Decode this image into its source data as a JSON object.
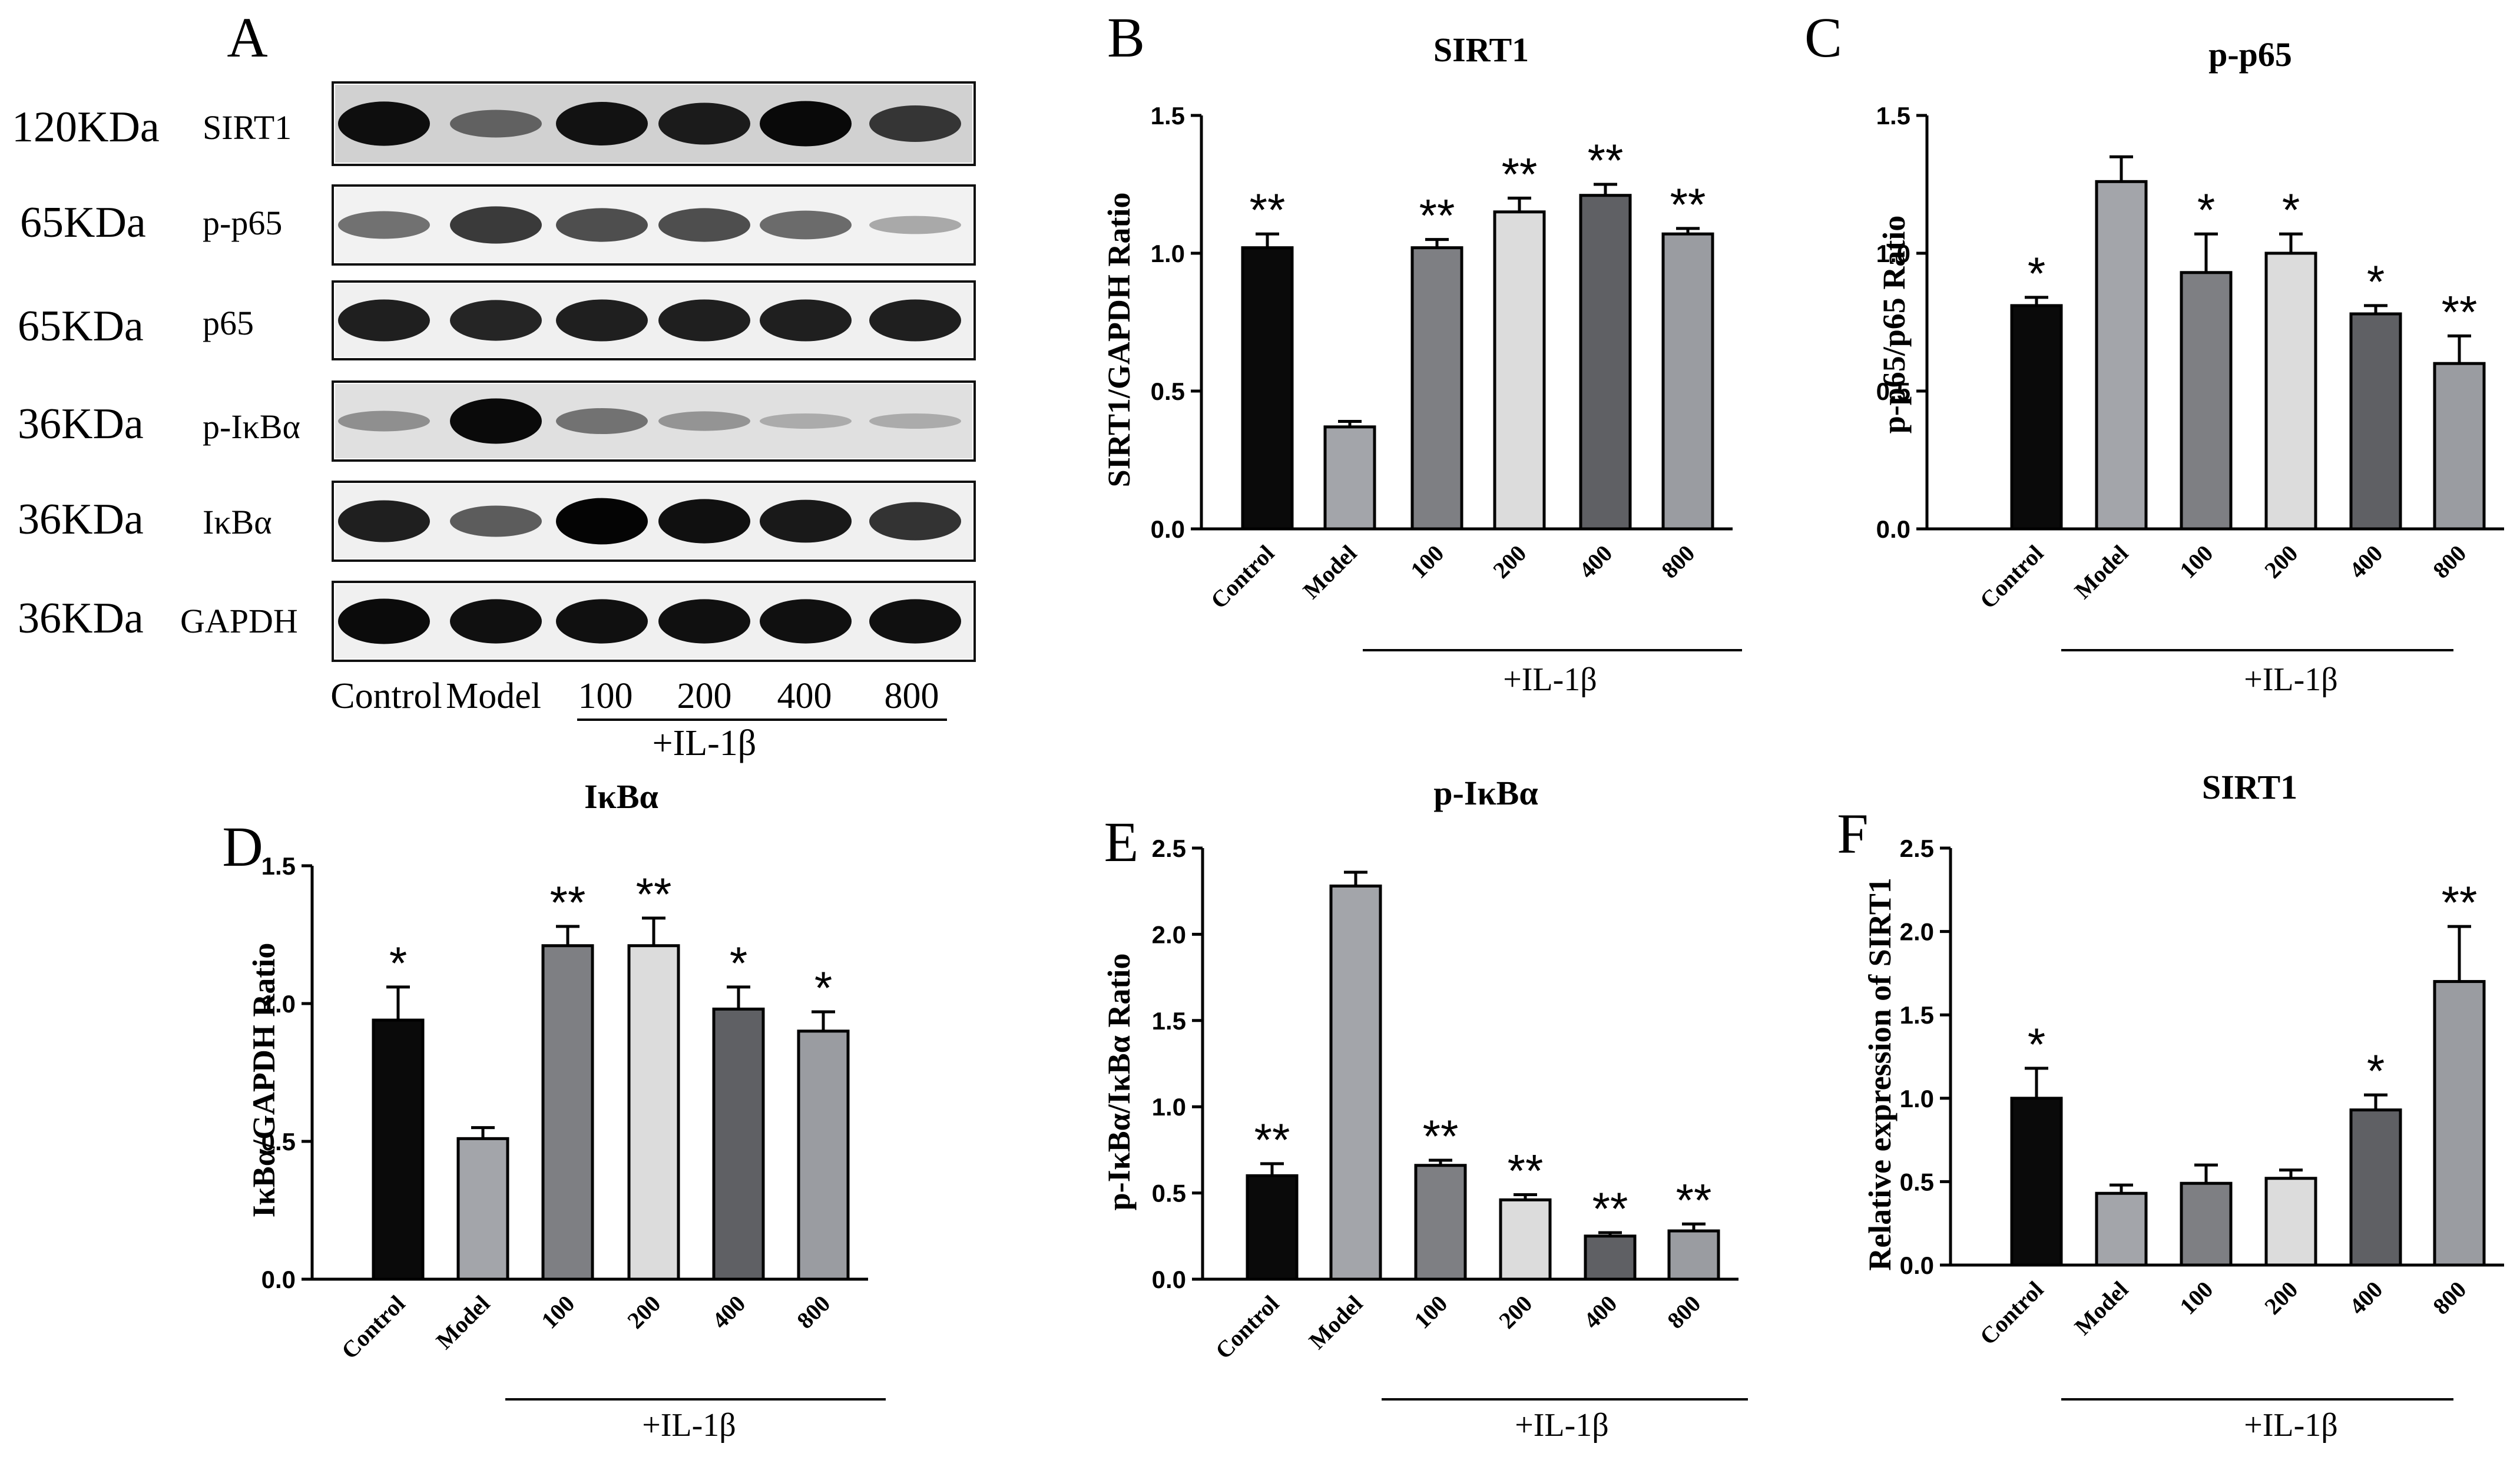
{
  "blot": {
    "letter": "A",
    "rows": [
      {
        "size": "120KDa",
        "name": "SIRT1",
        "intensity": [
          0.92,
          0.45,
          0.9,
          0.85,
          0.95,
          0.7
        ],
        "bg": 0.18
      },
      {
        "size": "65KDa",
        "name": "p-p65",
        "intensity": [
          0.45,
          0.72,
          0.62,
          0.62,
          0.48,
          0.18
        ],
        "bg": 0.05
      },
      {
        "size": "65KDa",
        "name": "p65",
        "intensity": [
          0.85,
          0.82,
          0.85,
          0.85,
          0.85,
          0.85
        ],
        "bg": 0.06
      },
      {
        "size": "36KDa",
        "name": "p-IκBα",
        "intensity": [
          0.25,
          0.95,
          0.4,
          0.22,
          0.1,
          0.1
        ],
        "bg": 0.12
      },
      {
        "size": "36KDa",
        "name": "IκBα",
        "intensity": [
          0.85,
          0.55,
          0.98,
          0.92,
          0.88,
          0.75
        ],
        "bg": 0.06
      },
      {
        "size": "36KDa",
        "name": "GAPDH",
        "intensity": [
          0.95,
          0.92,
          0.92,
          0.92,
          0.92,
          0.92
        ],
        "bg": 0.06
      }
    ],
    "lanes": [
      "Control",
      "Model",
      "100",
      "200",
      "400",
      "800"
    ],
    "group_label": "+IL-1β"
  },
  "chart_data": [
    {
      "type": "bar",
      "letter": "B",
      "title": "SIRT1",
      "xlabel": "",
      "ylabel": "SIRT1/GAPDH Ratio",
      "ylim": [
        0,
        1.5
      ],
      "yticks": [
        "0.0",
        "0.5",
        "1.0",
        "1.5"
      ],
      "categories": [
        "Control",
        "Model",
        "100",
        "200",
        "400",
        "800"
      ],
      "values": [
        1.02,
        0.37,
        1.02,
        1.15,
        1.21,
        1.07
      ],
      "errors": [
        0.05,
        0.02,
        0.03,
        0.05,
        0.04,
        0.02
      ],
      "significance": [
        "**",
        "",
        "**",
        "**",
        "**",
        "**"
      ],
      "group_label": "+IL-1β",
      "colors": [
        "#0a0a0a",
        "#a3a5aa",
        "#7e7f83",
        "#dcdcdc",
        "#5f6064",
        "#9a9ca1"
      ]
    },
    {
      "type": "bar",
      "letter": "C",
      "title": "p-p65",
      "xlabel": "",
      "ylabel": "p-p65/p65 Ratio",
      "ylim": [
        0,
        1.5
      ],
      "yticks": [
        "0.0",
        "0.5",
        "1.0",
        "1.5"
      ],
      "categories": [
        "Control",
        "Model",
        "100",
        "200",
        "400",
        "800"
      ],
      "values": [
        0.81,
        1.26,
        0.93,
        1.0,
        0.78,
        0.6
      ],
      "errors": [
        0.03,
        0.09,
        0.14,
        0.07,
        0.03,
        0.1
      ],
      "significance": [
        "*",
        "",
        "*",
        "*",
        "*",
        "**"
      ],
      "group_label": "+IL-1β",
      "colors": [
        "#0a0a0a",
        "#a3a5aa",
        "#7e7f83",
        "#dcdcdc",
        "#5f6064",
        "#9a9ca1"
      ]
    },
    {
      "type": "bar",
      "letter": "D",
      "title": "IκBα",
      "xlabel": "",
      "ylabel": "IκBα/GAPDH Ratio",
      "ylim": [
        0,
        1.5
      ],
      "yticks": [
        "0.0",
        "0.5",
        "1.0",
        "1.5"
      ],
      "categories": [
        "Control",
        "Model",
        "100",
        "200",
        "400",
        "800"
      ],
      "values": [
        0.94,
        0.51,
        1.21,
        1.21,
        0.98,
        0.9
      ],
      "errors": [
        0.12,
        0.04,
        0.07,
        0.1,
        0.08,
        0.07
      ],
      "significance": [
        "*",
        "",
        "**",
        "**",
        "*",
        "*"
      ],
      "group_label": "+IL-1β",
      "colors": [
        "#0a0a0a",
        "#a3a5aa",
        "#7e7f83",
        "#dcdcdc",
        "#5f6064",
        "#9a9ca1"
      ]
    },
    {
      "type": "bar",
      "letter": "E",
      "title": "p-IκBα",
      "xlabel": "",
      "ylabel": "p-IκBα/IκBα Ratio",
      "ylim": [
        0,
        2.5
      ],
      "yticks": [
        "0.0",
        "0.5",
        "1.0",
        "1.5",
        "2.0",
        "2.5"
      ],
      "categories": [
        "Control",
        "Model",
        "100",
        "200",
        "400",
        "800"
      ],
      "values": [
        0.6,
        2.28,
        0.66,
        0.46,
        0.25,
        0.28
      ],
      "errors": [
        0.07,
        0.08,
        0.03,
        0.03,
        0.02,
        0.04
      ],
      "significance": [
        "**",
        "",
        "**",
        "**",
        "**",
        "**"
      ],
      "group_label": "+IL-1β",
      "colors": [
        "#0a0a0a",
        "#a3a5aa",
        "#7e7f83",
        "#dcdcdc",
        "#5f6064",
        "#9a9ca1"
      ]
    },
    {
      "type": "bar",
      "letter": "F",
      "title": "SIRT1",
      "xlabel": "",
      "ylabel": "Relative expression of SIRT1",
      "ylim": [
        0,
        2.5
      ],
      "yticks": [
        "0.0",
        "0.5",
        "1.0",
        "1.5",
        "2.0",
        "2.5"
      ],
      "categories": [
        "Control",
        "Model",
        "100",
        "200",
        "400",
        "800"
      ],
      "values": [
        1.0,
        0.43,
        0.49,
        0.52,
        0.93,
        1.7
      ],
      "errors": [
        0.18,
        0.05,
        0.11,
        0.05,
        0.09,
        0.33
      ],
      "significance": [
        "*",
        "",
        "",
        "",
        "*",
        "**"
      ],
      "group_label": "+IL-1β",
      "colors": [
        "#0a0a0a",
        "#a3a5aa",
        "#7e7f83",
        "#dcdcdc",
        "#5f6064",
        "#9a9ca1"
      ]
    }
  ]
}
